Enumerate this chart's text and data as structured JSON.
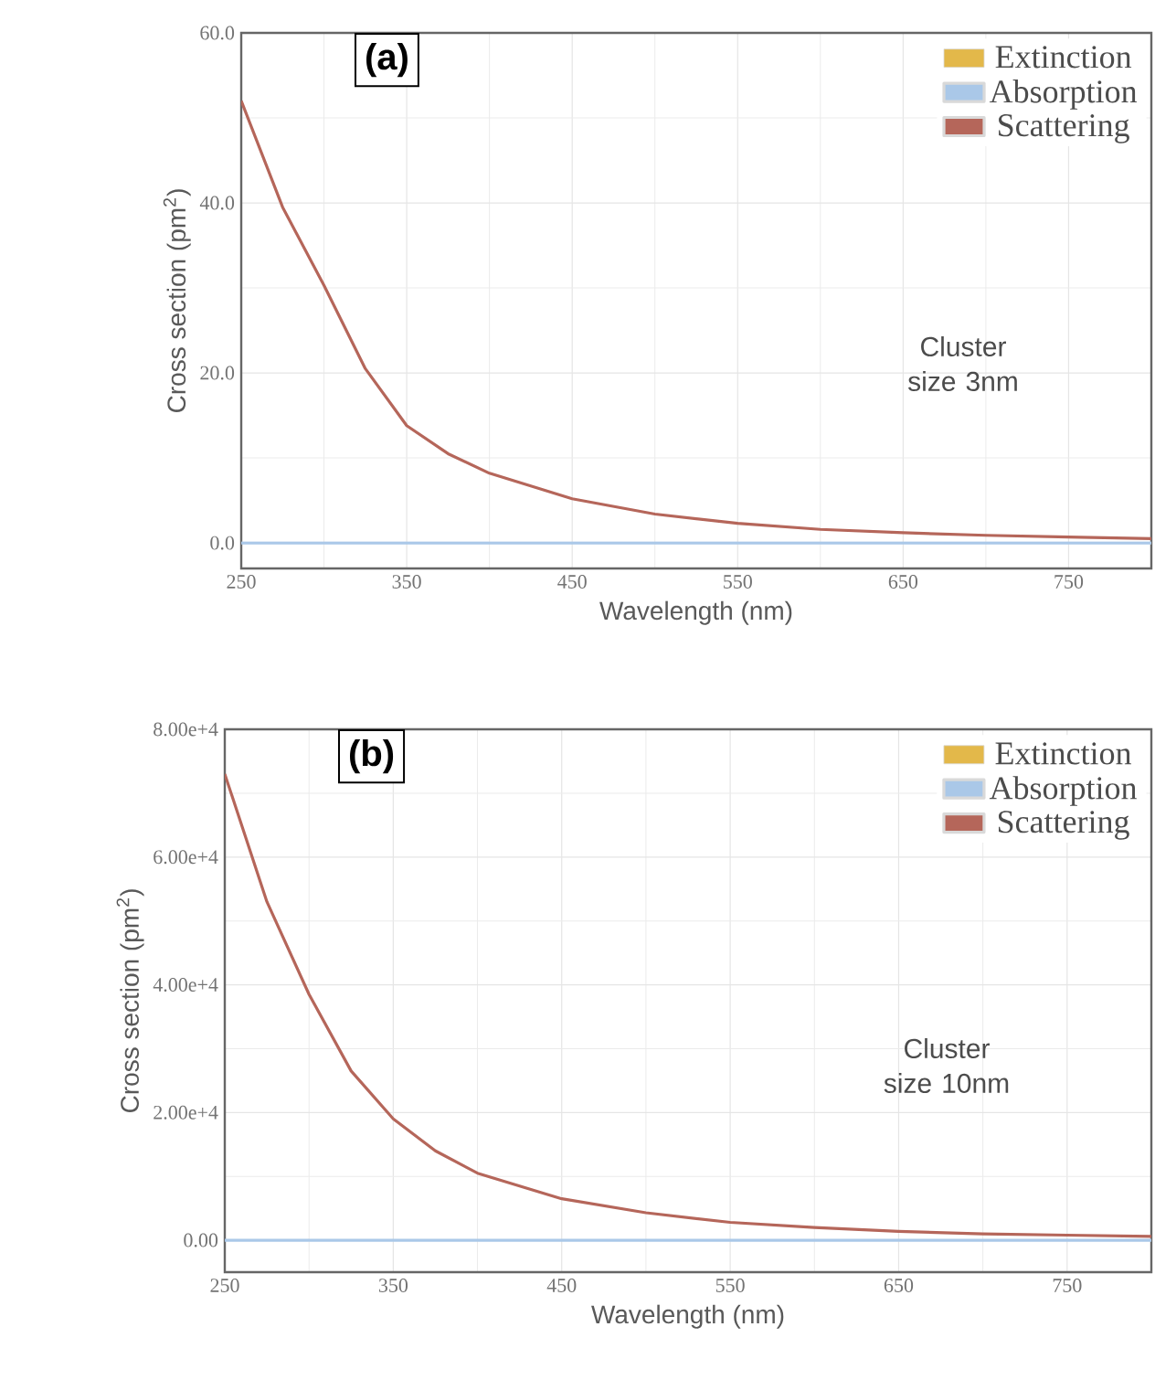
{
  "chart_data": [
    {
      "type": "line",
      "xlabel": "Wavelength (nm)",
      "ylabel": "Cross section (pm$^{2}$)",
      "x": [
        250,
        275,
        300,
        325,
        350,
        375,
        400,
        450,
        500,
        550,
        600,
        650,
        700,
        750,
        800
      ],
      "series": [
        {
          "name": "Extinction",
          "color": "#e3b84a",
          "values": [
            null,
            null,
            null,
            null,
            null,
            null,
            null,
            null,
            null,
            null,
            null,
            null,
            null,
            null,
            null
          ]
        },
        {
          "name": "Absorption",
          "color": "#aac8e8",
          "values": [
            0,
            0,
            0,
            0,
            0,
            0,
            0,
            0,
            0,
            0,
            0,
            0,
            0,
            0,
            0
          ]
        },
        {
          "name": "Scattering",
          "color": "#b5665a",
          "values": [
            52.0,
            39.5,
            30.3,
            20.5,
            13.8,
            10.5,
            8.2,
            5.2,
            3.4,
            2.3,
            1.6,
            1.2,
            0.9,
            0.7,
            0.5
          ]
        }
      ],
      "xlim": [
        250,
        800
      ],
      "xticks": [
        250,
        350,
        450,
        550,
        650,
        750
      ],
      "ylim": [
        -3,
        60
      ],
      "yticks": [
        {
          "value": 0,
          "label": "0.0"
        },
        {
          "value": 20,
          "label": "20.0"
        },
        {
          "value": 40,
          "label": "40.0"
        },
        {
          "value": 60,
          "label": "60.0"
        }
      ],
      "grid": true,
      "legend": "top right",
      "annotations": [
        "(a)",
        "Cluster size 3nm"
      ]
    },
    {
      "type": "line",
      "xlabel": "Wavelength (nm)",
      "ylabel": "Cross section (pm$^{2}$)",
      "x": [
        250,
        275,
        300,
        325,
        350,
        375,
        400,
        450,
        500,
        550,
        600,
        650,
        700,
        750,
        800
      ],
      "series": [
        {
          "name": "Extinction",
          "color": "#e3b84a",
          "values": [
            null,
            null,
            null,
            null,
            null,
            null,
            null,
            null,
            null,
            null,
            null,
            null,
            null,
            null,
            null
          ]
        },
        {
          "name": "Absorption",
          "color": "#aac8e8",
          "values": [
            0,
            0,
            0,
            0,
            0,
            0,
            0,
            0,
            0,
            0,
            0,
            0,
            0,
            0,
            0
          ]
        },
        {
          "name": "Scattering",
          "color": "#b5665a",
          "values": [
            73000,
            53000,
            38500,
            26500,
            19000,
            14000,
            10500,
            6500,
            4300,
            2800,
            2000,
            1400,
            1000,
            800,
            600
          ]
        }
      ],
      "xlim": [
        250,
        800
      ],
      "xticks": [
        250,
        350,
        450,
        550,
        650,
        750
      ],
      "ylim": [
        -5000,
        80000
      ],
      "yticks": [
        {
          "value": 0,
          "label": "0.00"
        },
        {
          "value": 20000,
          "label": "2.00e+4"
        },
        {
          "value": 40000,
          "label": "4.00e+4"
        },
        {
          "value": 60000,
          "label": "6.00e+4"
        },
        {
          "value": 80000,
          "label": "8.00e+4"
        }
      ],
      "grid": true,
      "legend": "top right",
      "annotations": [
        "(b)",
        "Cluster size 10nm"
      ]
    }
  ]
}
